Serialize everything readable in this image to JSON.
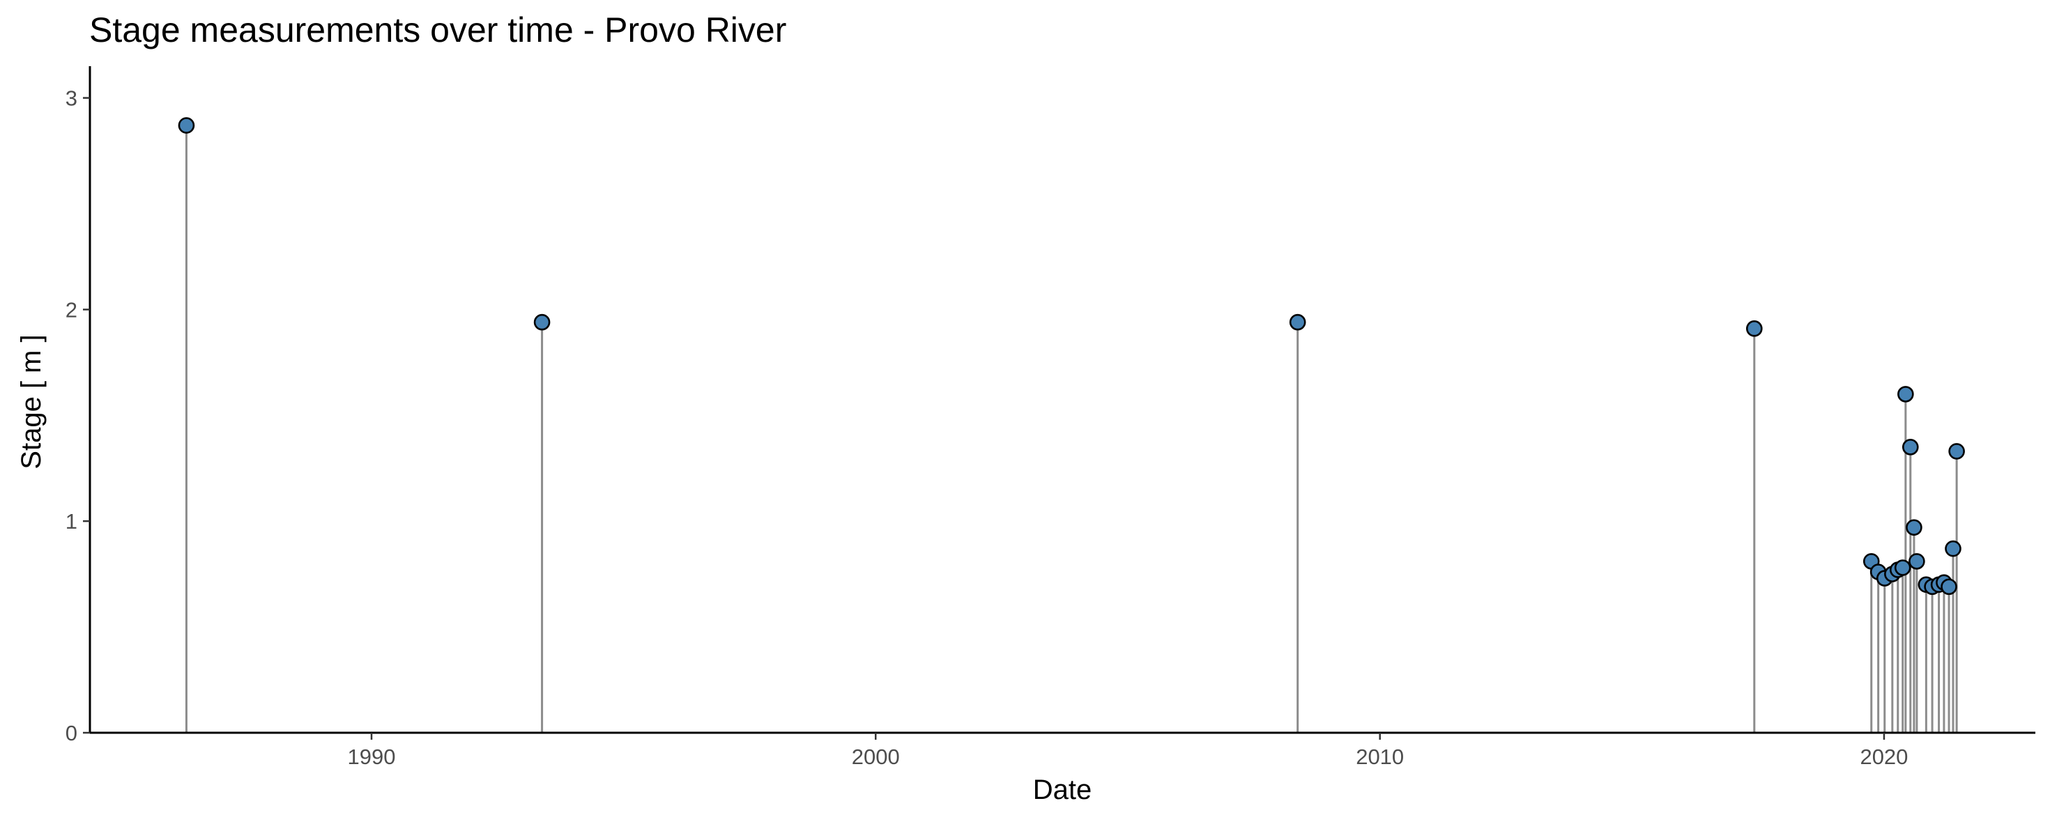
{
  "chart_data": {
    "type": "scatter",
    "style": "lollipop",
    "title": "Stage measurements over time - Provo River",
    "xlabel": "Date",
    "ylabel": "Stage  [ m ]",
    "x_ticks": [
      "1990",
      "2000",
      "2010",
      "2020"
    ],
    "y_ticks": [
      "0",
      "1",
      "2",
      "3"
    ],
    "xlim": [
      "1984-06-01",
      "2023-01-01"
    ],
    "ylim": [
      0,
      3.15
    ],
    "grid": false,
    "legend": "none",
    "point_color": "#4682b4",
    "stem_color": "#8c8c8c",
    "series": [
      {
        "points": [
          {
            "x": "1986-05-01",
            "y": 2.87
          },
          {
            "x": "1993-05-20",
            "y": 1.94
          },
          {
            "x": "2008-05-15",
            "y": 1.94
          },
          {
            "x": "2017-06-05",
            "y": 1.91
          },
          {
            "x": "2019-10-01",
            "y": 0.81
          },
          {
            "x": "2019-11-20",
            "y": 0.76
          },
          {
            "x": "2020-01-05",
            "y": 0.73
          },
          {
            "x": "2020-03-01",
            "y": 0.75
          },
          {
            "x": "2020-04-10",
            "y": 0.77
          },
          {
            "x": "2020-05-15",
            "y": 0.78
          },
          {
            "x": "2020-06-05",
            "y": 1.6
          },
          {
            "x": "2020-07-10",
            "y": 1.35
          },
          {
            "x": "2020-08-05",
            "y": 0.97
          },
          {
            "x": "2020-08-25",
            "y": 0.81
          },
          {
            "x": "2020-11-01",
            "y": 0.7
          },
          {
            "x": "2020-12-15",
            "y": 0.69
          },
          {
            "x": "2021-02-01",
            "y": 0.7
          },
          {
            "x": "2021-03-10",
            "y": 0.71
          },
          {
            "x": "2021-04-15",
            "y": 0.69
          },
          {
            "x": "2021-05-15",
            "y": 0.87
          },
          {
            "x": "2021-06-10",
            "y": 1.33
          }
        ]
      }
    ]
  }
}
